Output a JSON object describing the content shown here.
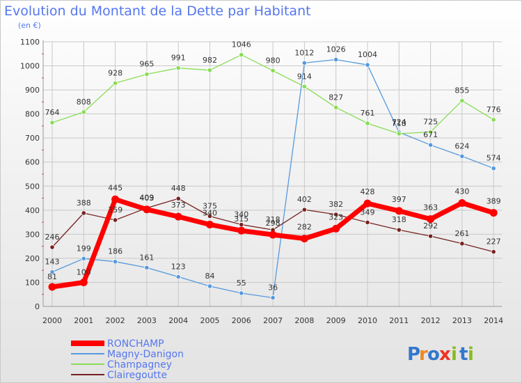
{
  "chart_data": {
    "type": "line",
    "title": "Evolution du Montant de la Dette par Habitant",
    "subtitle": "(en €)",
    "x": [
      "2000",
      "2001",
      "2002",
      "2003",
      "2004",
      "2005",
      "2006",
      "2007",
      "2008",
      "2009",
      "2010",
      "2011",
      "2012",
      "2013",
      "2014"
    ],
    "ylim": [
      0,
      1100
    ],
    "yticks": [
      0,
      100,
      200,
      300,
      400,
      500,
      600,
      700,
      800,
      900,
      1000,
      1100
    ],
    "grid": true,
    "legend_position": "bottom-left",
    "series": [
      {
        "name": "RONCHAMP",
        "color": "#ff0000",
        "values": [
          81,
          100,
          445,
          403,
          373,
          340,
          315,
          298,
          282,
          323,
          428,
          397,
          363,
          430,
          389
        ],
        "labels": [
          "81",
          "100",
          "445",
          "403",
          "373",
          "340",
          "315",
          "298",
          "282",
          "323",
          "428",
          "397",
          "363",
          "430",
          "389"
        ]
      },
      {
        "name": "Magny-Danigon",
        "color": "#5599dd",
        "values": [
          143,
          199,
          186,
          161,
          123,
          84,
          55,
          36,
          1012,
          1026,
          1004,
          724,
          671,
          624,
          574
        ],
        "labels": [
          "143",
          "199",
          "186",
          "161",
          "123",
          "84",
          "55",
          "36",
          "1012",
          "1026",
          "1004",
          "724",
          "671",
          "624",
          "574"
        ]
      },
      {
        "name": "Champagney",
        "color": "#88dd55",
        "values": [
          764,
          808,
          928,
          965,
          991,
          982,
          1046,
          980,
          914,
          827,
          761,
          718,
          725,
          855,
          776
        ],
        "labels": [
          "764",
          "808",
          "928",
          "965",
          "991",
          "982",
          "1046",
          "980",
          "914",
          "827",
          "761",
          "718",
          "725",
          "855",
          "776"
        ]
      },
      {
        "name": "Clairegoutte",
        "color": "#772222",
        "values": [
          246,
          388,
          359,
          409,
          448,
          375,
          340,
          318,
          402,
          382,
          349,
          318,
          292,
          261,
          227
        ],
        "labels": [
          "246",
          "388",
          "359",
          "409",
          "448",
          "375",
          "340",
          "318",
          "402",
          "382",
          "349",
          "318",
          "292",
          "261",
          "227"
        ]
      }
    ]
  },
  "logo": {
    "letters": [
      "P",
      "r",
      "o",
      "x",
      "i",
      "t",
      "i"
    ],
    "colors": [
      "#3377cc",
      "#ee8822",
      "#3377cc",
      "#ee3322",
      "#88bb22",
      "#3377cc",
      "#88bb22"
    ]
  }
}
